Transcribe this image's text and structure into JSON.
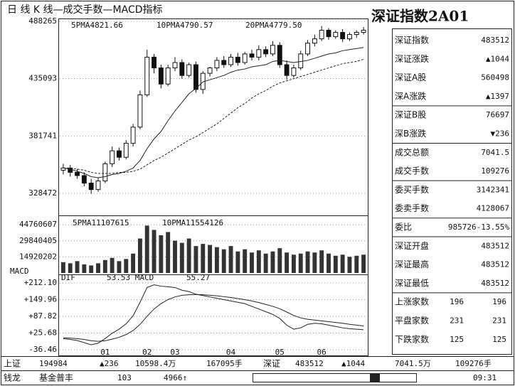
{
  "header": {
    "title": "日 线 K 线—成交手数—MACD指标",
    "panel_title": "深证指数2A01"
  },
  "chart_data": [
    {
      "type": "candlestick",
      "annotations": [
        "5PMA4821.66",
        "10PMA4790.57",
        "20PMA4779.50"
      ],
      "open": [
        350000,
        352000,
        348000,
        345000,
        338000,
        332000,
        340000,
        356000,
        368000,
        362000,
        375000,
        390000,
        420000,
        455000,
        445000,
        430000,
        445000,
        450000,
        438000,
        448000,
        425000,
        440000,
        445000,
        452000,
        448000,
        455000,
        450000,
        458000,
        455000,
        462000,
        458000,
        466000,
        448000,
        438000,
        445000,
        458000,
        468000,
        472000,
        480000,
        474000,
        478000,
        472000,
        476000,
        478000
      ],
      "high": [
        356000,
        355000,
        351000,
        348000,
        342000,
        343000,
        358000,
        372000,
        371000,
        378000,
        393000,
        424000,
        462000,
        458000,
        448000,
        448000,
        455000,
        453000,
        450000,
        451000,
        442000,
        446000,
        455000,
        456000,
        458000,
        459000,
        460000,
        462000,
        466000,
        465000,
        470000,
        469000,
        452000,
        448000,
        461000,
        471000,
        476000,
        484000,
        482000,
        480000,
        481000,
        478000,
        480000,
        483000
      ],
      "low": [
        346000,
        344000,
        342000,
        335000,
        328000,
        330000,
        338000,
        353000,
        359000,
        360000,
        372000,
        388000,
        418000,
        440000,
        426000,
        428000,
        442000,
        435000,
        436000,
        422000,
        421000,
        437000,
        442000,
        445000,
        446000,
        447000,
        448000,
        452000,
        452000,
        455000,
        456000,
        445000,
        434000,
        436000,
        443000,
        456000,
        465000,
        470000,
        471000,
        472000,
        469000,
        470000,
        473000,
        476000
      ],
      "close": [
        352000,
        348000,
        345000,
        338000,
        332000,
        340000,
        356000,
        368000,
        362000,
        375000,
        390000,
        420000,
        455000,
        445000,
        430000,
        445000,
        450000,
        438000,
        448000,
        425000,
        440000,
        445000,
        452000,
        448000,
        455000,
        450000,
        458000,
        455000,
        462000,
        458000,
        466000,
        448000,
        438000,
        445000,
        458000,
        468000,
        472000,
        480000,
        474000,
        478000,
        472000,
        476000,
        478000,
        480000
      ],
      "ma_lines": [
        {
          "values": [
            352000,
            351000,
            349000,
            347000,
            344000,
            343000,
            344000,
            346000,
            347000,
            349000,
            352000,
            359000,
            370000,
            379000,
            386000,
            396000,
            405000,
            413000,
            421000,
            426000,
            432000,
            434000,
            436000,
            438000,
            441000,
            443000,
            444000,
            446000,
            447000,
            448000,
            451000,
            452000,
            451000,
            450000,
            451000,
            452000,
            454000,
            456000,
            458000,
            459000,
            461000,
            462000,
            463000,
            464000
          ]
        },
        {
          "values": [
            352000,
            352000,
            351000,
            350000,
            348000,
            347000,
            347000,
            347000,
            348000,
            348000,
            349000,
            351000,
            355000,
            359000,
            362000,
            366000,
            370000,
            374000,
            378000,
            381000,
            385000,
            389000,
            393000,
            398000,
            403000,
            408000,
            412000,
            417000,
            421000,
            424000,
            428000,
            431000,
            433000,
            435000,
            437000,
            439000,
            441000,
            443000,
            445000,
            447000,
            449000,
            450000,
            451000,
            453000
          ]
        }
      ],
      "ylim": [
        310000,
        489600
      ],
      "yticks": [
        328472,
        381741,
        435093,
        488265
      ]
    },
    {
      "type": "bar",
      "annotations": [
        "5PMA11107615",
        "10PMA11554126"
      ],
      "values": [
        10000000,
        9000000,
        11000000,
        8000000,
        7000000,
        9000000,
        12000000,
        14000000,
        11000000,
        13000000,
        18000000,
        32000000,
        44000000,
        40000000,
        35000000,
        38000000,
        30000000,
        28000000,
        32000000,
        25000000,
        27000000,
        26000000,
        24000000,
        22000000,
        25000000,
        20000000,
        22000000,
        19000000,
        21000000,
        18000000,
        20000000,
        23000000,
        19000000,
        17000000,
        18000000,
        20000000,
        19000000,
        21000000,
        18000000,
        16000000,
        17000000,
        15000000,
        16000000,
        17000000
      ],
      "ylim": [
        0,
        51500000
      ],
      "yticks": [
        14920202,
        29840405,
        44760607
      ]
    },
    {
      "type": "line",
      "y_label": "MACD",
      "annotations": [
        "DIF",
        "53.53 MACD",
        "55.27"
      ],
      "categories": [
        null,
        null,
        null,
        null,
        null,
        null,
        "01",
        null,
        null,
        null,
        null,
        null,
        "02",
        null,
        null,
        null,
        "03",
        null,
        null,
        null,
        null,
        null,
        null,
        null,
        "04",
        null,
        null,
        null,
        null,
        null,
        null,
        "05",
        null,
        null,
        null,
        null,
        null,
        "06",
        null,
        null,
        null,
        null,
        null,
        null
      ],
      "series": [
        {
          "values": [
            5,
            2,
            -2,
            -10,
            -18,
            -12,
            5,
            25,
            40,
            60,
            90,
            140,
            195,
            205,
            200,
            198,
            195,
            185,
            180,
            170,
            165,
            160,
            155,
            150,
            145,
            140,
            135,
            125,
            115,
            105,
            95,
            80,
            55,
            40,
            45,
            58,
            62,
            60,
            55,
            50,
            45,
            42,
            40,
            38
          ]
        },
        {
          "values": [
            8,
            7,
            5,
            2,
            -3,
            -5,
            -3,
            3,
            10,
            20,
            35,
            58,
            88,
            115,
            135,
            150,
            160,
            166,
            168,
            169,
            168,
            166,
            164,
            161,
            158,
            154,
            150,
            145,
            139,
            132,
            125,
            116,
            104,
            91,
            82,
            77,
            74,
            71,
            68,
            65,
            62,
            58,
            55,
            52
          ]
        }
      ],
      "ylim": [
        -57.6,
        238.5
      ],
      "yticks": [
        -36.46,
        {
          "value": 25.68,
          "label": "+25.68"
        },
        {
          "value": 87.82,
          "label": "+87.82"
        },
        {
          "value": 149.96,
          "label": "+149.96"
        },
        {
          "value": 212.1,
          "label": "+212.10"
        }
      ]
    }
  ],
  "quote_panel": [
    [
      "深证指数",
      "483512"
    ],
    [
      "深证涨跌",
      "▲1044"
    ],
    [
      "深证A股",
      "560498"
    ],
    [
      "深A涨跌",
      "▲1397"
    ],
    [
      "深证B股",
      "76697"
    ],
    [
      "深B涨跌",
      "▼236"
    ],
    [
      "成交总额",
      "7041.5"
    ],
    [
      "成交手数",
      "109276"
    ],
    [
      "委买手数",
      "3142341"
    ],
    [
      "委卖手数",
      "4128067"
    ],
    [
      "委比",
      "985726-13.55%"
    ],
    [
      "深证开盘",
      "483512"
    ],
    [
      "深证最高",
      "483512"
    ],
    [
      "深证最低",
      "483512"
    ],
    [
      "上涨家数",
      "196",
      "196"
    ],
    [
      "平盘家数",
      "231",
      "231"
    ],
    [
      "下跌家数",
      "125",
      "125"
    ]
  ],
  "ticker": [
    "上证",
    "194984",
    "▲236",
    "10598.4万",
    "167095手",
    "深证",
    "483512",
    "▲1044",
    "7041.5万",
    "109276手"
  ],
  "status": [
    "钱龙",
    "基金普丰",
    "103",
    "4966↑",
    "09:31"
  ]
}
